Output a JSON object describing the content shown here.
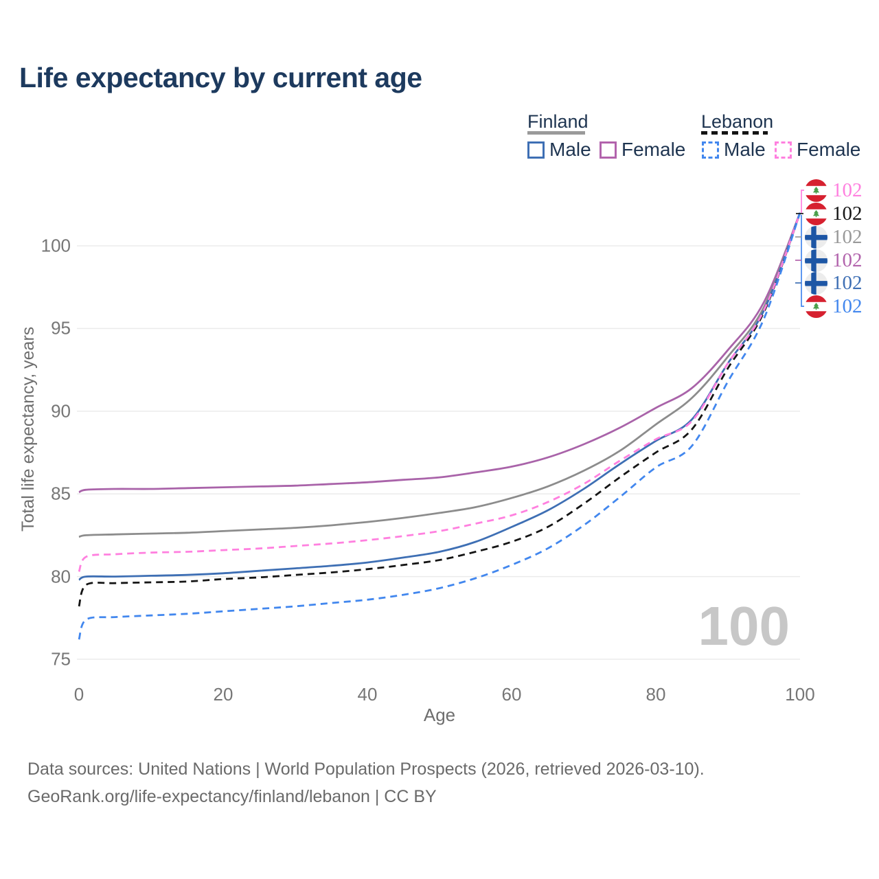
{
  "title": "Life expectancy by current age",
  "legend": {
    "groups": [
      {
        "country": "Finland",
        "line_style": "solid",
        "underline_color": "#9a9a9a",
        "items": [
          {
            "label": "Male",
            "color": "#3e6fb4"
          },
          {
            "label": "Female",
            "color": "#b263ac"
          }
        ]
      },
      {
        "country": "Lebanon",
        "line_style": "dashed",
        "underline_color": "#141414",
        "items": [
          {
            "label": "Male",
            "color": "#4287ee"
          },
          {
            "label": "Female",
            "color": "#ff80df"
          }
        ]
      }
    ]
  },
  "chart_data": {
    "type": "line",
    "title": "Life expectancy by current age",
    "xlabel": "Age",
    "ylabel": "Total life expectancy, years",
    "xlim": [
      0,
      100
    ],
    "ylim": [
      74.5,
      102.5
    ],
    "xticks": [
      0,
      20,
      40,
      60,
      80,
      100
    ],
    "yticks": [
      75,
      80,
      85,
      90,
      95,
      100
    ],
    "grid": "horizontal",
    "gridline_color": "#ebebeb",
    "x": [
      0,
      1,
      5,
      10,
      15,
      20,
      25,
      30,
      35,
      40,
      45,
      50,
      55,
      60,
      65,
      70,
      75,
      80,
      85,
      90,
      95,
      100
    ],
    "series": [
      {
        "name": "Finland Female",
        "color": "#a963a9",
        "dash": false,
        "values": [
          85.1,
          85.25,
          85.3,
          85.3,
          85.35,
          85.4,
          85.45,
          85.5,
          85.6,
          85.7,
          85.85,
          86.0,
          86.3,
          86.65,
          87.2,
          88.0,
          89.0,
          90.2,
          91.4,
          93.7,
          96.6,
          102
        ]
      },
      {
        "name": "Finland Both sexes",
        "color": "#8c8c8c",
        "dash": false,
        "values": [
          82.4,
          82.5,
          82.55,
          82.6,
          82.65,
          82.75,
          82.85,
          82.95,
          83.1,
          83.3,
          83.55,
          83.85,
          84.2,
          84.75,
          85.45,
          86.4,
          87.6,
          89.2,
          90.8,
          93.3,
          96.3,
          102
        ]
      },
      {
        "name": "Finland Male",
        "color": "#3e6fb4",
        "dash": false,
        "values": [
          79.8,
          80.0,
          80.0,
          80.05,
          80.1,
          80.2,
          80.35,
          80.5,
          80.65,
          80.85,
          81.15,
          81.5,
          82.1,
          83.0,
          84.0,
          85.3,
          86.8,
          88.2,
          89.5,
          92.9,
          96.1,
          102
        ]
      },
      {
        "name": "Lebanon Both sexes",
        "color": "#151515",
        "dash": true,
        "values": [
          78.2,
          79.5,
          79.6,
          79.65,
          79.7,
          79.85,
          79.95,
          80.1,
          80.25,
          80.45,
          80.7,
          81.0,
          81.5,
          82.1,
          83.0,
          84.4,
          86.0,
          87.5,
          88.9,
          92.6,
          96.0,
          102
        ]
      },
      {
        "name": "Lebanon Female",
        "color": "#ff80df",
        "dash": true,
        "values": [
          80.3,
          81.2,
          81.35,
          81.45,
          81.5,
          81.6,
          81.7,
          81.85,
          82.0,
          82.2,
          82.45,
          82.75,
          83.2,
          83.7,
          84.5,
          85.6,
          87.0,
          88.3,
          89.4,
          92.9,
          96.1,
          102
        ]
      },
      {
        "name": "Lebanon Male",
        "color": "#4287ee",
        "dash": true,
        "values": [
          76.2,
          77.4,
          77.55,
          77.65,
          77.75,
          77.9,
          78.05,
          78.2,
          78.4,
          78.6,
          78.9,
          79.3,
          79.9,
          80.7,
          81.7,
          83.1,
          84.8,
          86.6,
          87.9,
          91.8,
          95.6,
          102
        ]
      }
    ]
  },
  "annotations": [
    {
      "flag": "lebanon-flag",
      "value": "102",
      "color": "#ff80df"
    },
    {
      "flag": "lebanon-flag",
      "value": "102",
      "color": "#151515"
    },
    {
      "flag": "finland-flag",
      "value": "102",
      "color": "#999999"
    },
    {
      "flag": "finland-flag",
      "value": "102",
      "color": "#b263ac"
    },
    {
      "flag": "finland-flag",
      "value": "102",
      "color": "#3e6fb4"
    },
    {
      "flag": "lebanon-flag",
      "value": "102",
      "color": "#4287ee"
    }
  ],
  "watermark": "100",
  "footer": {
    "line1": "Data sources: United Nations | World Population Prospects (2026, retrieved 2026-03-10).",
    "line2": "GeoRank.org/life-expectancy/finland/lebanon | CC BY"
  }
}
